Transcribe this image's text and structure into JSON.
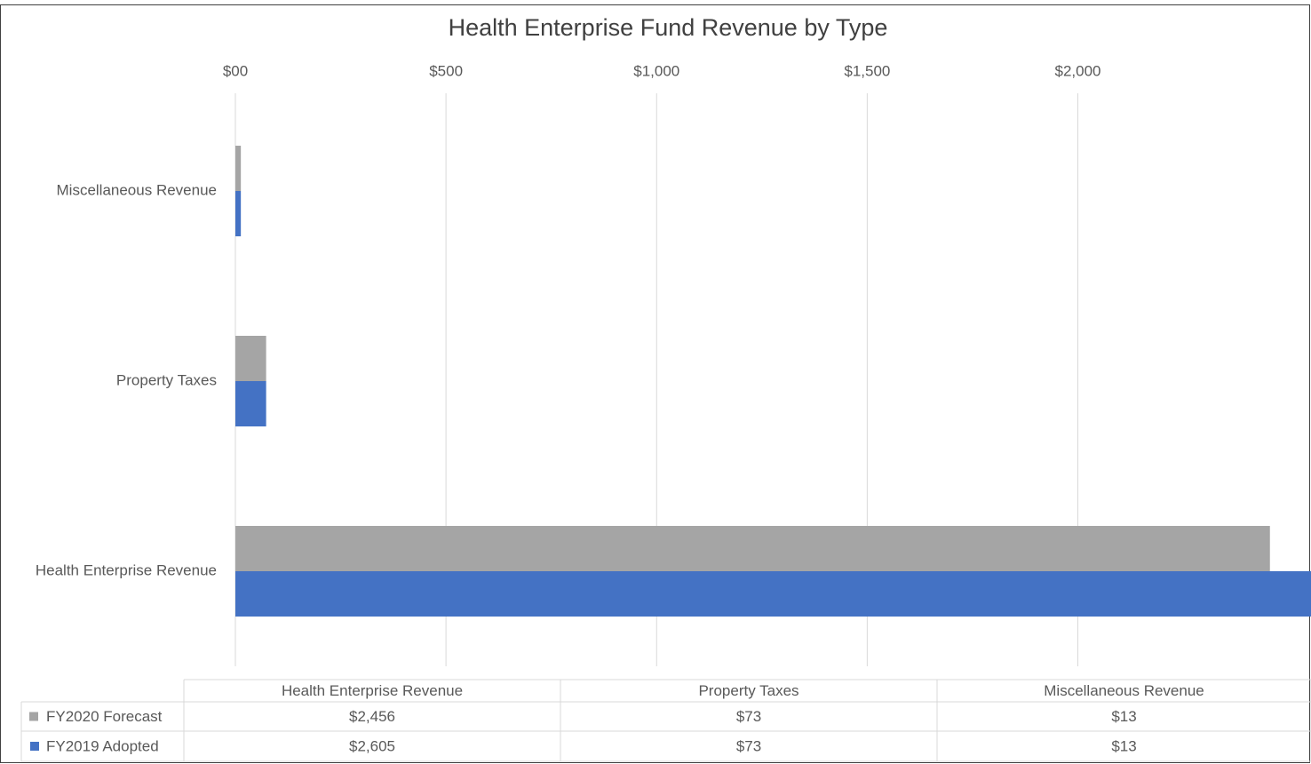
{
  "chart_data": {
    "type": "hbar",
    "title": "Health Enterprise Fund Revenue by Type",
    "categories": [
      "Health Enterprise Revenue",
      "Property Taxes",
      "Miscellaneous Revenue"
    ],
    "series": [
      {
        "name": "FY2020 Forecast",
        "color": "#a5a5a5",
        "values": [
          2456,
          73,
          13
        ],
        "value_labels": [
          "$2,456",
          "$73",
          "$13"
        ]
      },
      {
        "name": "FY2019 Adopted",
        "color": "#4472c4",
        "values": [
          2605,
          73,
          13
        ],
        "value_labels": [
          "$2,605",
          "$73",
          "$13"
        ]
      }
    ],
    "xlim": [
      0,
      2505
    ],
    "xticks": [
      {
        "value": 0,
        "label": "$00"
      },
      {
        "value": 500,
        "label": "$500"
      },
      {
        "value": 1000,
        "label": "$1,000"
      },
      {
        "value": 1500,
        "label": "$1,500"
      },
      {
        "value": 2000,
        "label": "$2,000"
      }
    ],
    "grid": true
  }
}
